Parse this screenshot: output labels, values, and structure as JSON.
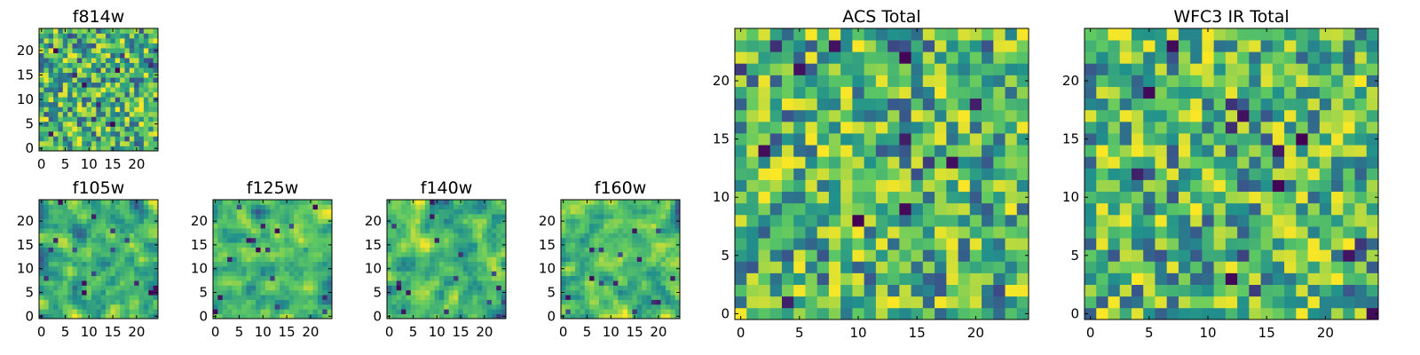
{
  "chart_data": [
    {
      "type": "heatmap",
      "title": "f814w",
      "xticks": [
        0,
        5,
        10,
        15,
        20
      ],
      "yticks": [
        0,
        5,
        10,
        15,
        20
      ],
      "grid_size": 25,
      "xlim": [
        0,
        25
      ],
      "ylim": [
        0,
        25
      ],
      "colormap": "viridis",
      "smoothness": 0,
      "seed": 11
    },
    {
      "type": "heatmap",
      "title": "f105w",
      "xticks": [
        0,
        5,
        10,
        15,
        20
      ],
      "yticks": [
        0,
        5,
        10,
        15,
        20
      ],
      "grid_size": 25,
      "xlim": [
        0,
        25
      ],
      "ylim": [
        0,
        25
      ],
      "colormap": "viridis",
      "smoothness": 1,
      "seed": 23
    },
    {
      "type": "heatmap",
      "title": "f125w",
      "xticks": [
        0,
        5,
        10,
        15,
        20
      ],
      "yticks": [
        0,
        5,
        10,
        15,
        20
      ],
      "grid_size": 25,
      "xlim": [
        0,
        25
      ],
      "ylim": [
        0,
        25
      ],
      "colormap": "viridis",
      "smoothness": 1,
      "seed": 37
    },
    {
      "type": "heatmap",
      "title": "f140w",
      "xticks": [
        0,
        5,
        10,
        15,
        20
      ],
      "yticks": [
        0,
        5,
        10,
        15,
        20
      ],
      "grid_size": 25,
      "xlim": [
        0,
        25
      ],
      "ylim": [
        0,
        25
      ],
      "colormap": "viridis",
      "smoothness": 1,
      "seed": 41
    },
    {
      "type": "heatmap",
      "title": "f160w",
      "xticks": [
        0,
        5,
        10,
        15,
        20
      ],
      "yticks": [
        0,
        5,
        10,
        15,
        20
      ],
      "grid_size": 25,
      "xlim": [
        0,
        25
      ],
      "ylim": [
        0,
        25
      ],
      "colormap": "viridis",
      "smoothness": 1,
      "seed": 53
    },
    {
      "type": "heatmap",
      "title": "ACS Total",
      "xticks": [
        0,
        5,
        10,
        15,
        20
      ],
      "yticks": [
        0,
        5,
        10,
        15,
        20
      ],
      "grid_size": 25,
      "xlim": [
        0,
        25
      ],
      "ylim": [
        0,
        25
      ],
      "colormap": "viridis",
      "smoothness": 0,
      "seed": 67
    },
    {
      "type": "heatmap",
      "title": "WFC3 IR Total",
      "xticks": [
        0,
        5,
        10,
        15,
        20
      ],
      "yticks": [
        0,
        5,
        10,
        15,
        20
      ],
      "grid_size": 25,
      "xlim": [
        0,
        25
      ],
      "ylim": [
        0,
        25
      ],
      "colormap": "viridis",
      "smoothness": 0,
      "seed": 79
    }
  ],
  "colors": {
    "viridis_stops": [
      "#440154",
      "#3b528b",
      "#21918c",
      "#5ec962",
      "#fde725"
    ]
  }
}
